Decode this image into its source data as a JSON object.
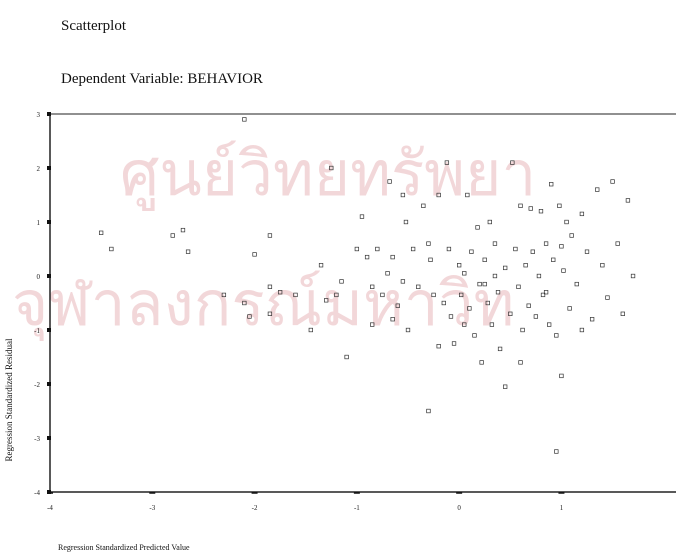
{
  "page": {
    "title": "Scatterplot",
    "subtitle": "Dependent Variable: BEHAVIOR"
  },
  "watermark": {
    "line1": "ศูนย์วิทยทรัพยา",
    "line2": "จุฬาลงกรณ์มหาวิท",
    "color": "#e8b4b8"
  },
  "chart_data": {
    "type": "scatter",
    "title": "",
    "xlabel": "Regression Standardized Predicted Value",
    "ylabel": "Regression Standardized Residual",
    "xlim": [
      -4,
      2
    ],
    "ylim": [
      -4,
      3
    ],
    "x_ticks": [
      -4,
      -3,
      -2,
      -1,
      0,
      1
    ],
    "y_ticks": [
      3,
      2,
      1,
      0,
      -1,
      -2,
      -3,
      -4
    ],
    "grid": false,
    "marker": "open-square",
    "points": [
      {
        "x": -3.5,
        "y": 0.8
      },
      {
        "x": -3.4,
        "y": 0.5
      },
      {
        "x": -2.8,
        "y": 0.75
      },
      {
        "x": -2.7,
        "y": 0.85
      },
      {
        "x": -2.65,
        "y": 0.45
      },
      {
        "x": -2.3,
        "y": -0.35
      },
      {
        "x": -2.1,
        "y": 2.9
      },
      {
        "x": -2.1,
        "y": -0.5
      },
      {
        "x": -2.0,
        "y": 0.4
      },
      {
        "x": -2.05,
        "y": -0.75
      },
      {
        "x": -1.85,
        "y": 0.75
      },
      {
        "x": -1.75,
        "y": -0.3
      },
      {
        "x": -1.6,
        "y": -0.35
      },
      {
        "x": -1.85,
        "y": -0.2
      },
      {
        "x": -1.85,
        "y": -0.7
      },
      {
        "x": -1.45,
        "y": -1.0
      },
      {
        "x": -1.35,
        "y": 0.2
      },
      {
        "x": -1.3,
        "y": -0.45
      },
      {
        "x": -1.25,
        "y": 2.0
      },
      {
        "x": -1.2,
        "y": -0.35
      },
      {
        "x": -1.15,
        "y": -0.1
      },
      {
        "x": -1.1,
        "y": -1.5
      },
      {
        "x": -1.0,
        "y": 0.5
      },
      {
        "x": -0.95,
        "y": 1.1
      },
      {
        "x": -0.9,
        "y": 0.35
      },
      {
        "x": -0.85,
        "y": -0.2
      },
      {
        "x": -0.85,
        "y": -0.9
      },
      {
        "x": -0.8,
        "y": 0.5
      },
      {
        "x": -0.75,
        "y": -0.35
      },
      {
        "x": -0.7,
        "y": 0.05
      },
      {
        "x": -0.68,
        "y": 1.75
      },
      {
        "x": -0.65,
        "y": 0.35
      },
      {
        "x": -0.6,
        "y": -0.55
      },
      {
        "x": -0.55,
        "y": 1.5
      },
      {
        "x": -0.52,
        "y": 1.0
      },
      {
        "x": -0.5,
        "y": -1.0
      },
      {
        "x": -0.45,
        "y": 0.5
      },
      {
        "x": -0.4,
        "y": -0.2
      },
      {
        "x": -0.35,
        "y": 1.3
      },
      {
        "x": -0.3,
        "y": 0.6
      },
      {
        "x": -0.28,
        "y": 0.3
      },
      {
        "x": -0.25,
        "y": -0.35
      },
      {
        "x": -0.2,
        "y": 1.5
      },
      {
        "x": -0.15,
        "y": -0.5
      },
      {
        "x": -0.12,
        "y": 2.1
      },
      {
        "x": -0.1,
        "y": 0.5
      },
      {
        "x": -0.08,
        "y": -0.75
      },
      {
        "x": -0.05,
        "y": -1.25
      },
      {
        "x": 0.0,
        "y": 0.2
      },
      {
        "x": 0.02,
        "y": -0.35
      },
      {
        "x": 0.05,
        "y": 0.05
      },
      {
        "x": 0.08,
        "y": 1.5
      },
      {
        "x": 0.1,
        "y": -0.6
      },
      {
        "x": 0.12,
        "y": 0.45
      },
      {
        "x": 0.15,
        "y": -1.1
      },
      {
        "x": 0.18,
        "y": 0.9
      },
      {
        "x": 0.2,
        "y": -0.15
      },
      {
        "x": 0.22,
        "y": -1.6
      },
      {
        "x": 0.25,
        "y": 0.3
      },
      {
        "x": 0.28,
        "y": -0.5
      },
      {
        "x": 0.3,
        "y": 1.0
      },
      {
        "x": 0.32,
        "y": -0.9
      },
      {
        "x": 0.35,
        "y": 0.6
      },
      {
        "x": 0.38,
        "y": -0.3
      },
      {
        "x": 0.4,
        "y": -1.35
      },
      {
        "x": 0.45,
        "y": 0.15
      },
      {
        "x": 0.5,
        "y": -0.7
      },
      {
        "x": 0.52,
        "y": 2.1
      },
      {
        "x": 0.55,
        "y": 0.5
      },
      {
        "x": 0.58,
        "y": -0.2
      },
      {
        "x": 0.6,
        "y": 1.3
      },
      {
        "x": 0.62,
        "y": -1.0
      },
      {
        "x": 0.65,
        "y": 0.2
      },
      {
        "x": 0.68,
        "y": -0.55
      },
      {
        "x": 0.7,
        "y": 1.25
      },
      {
        "x": 0.72,
        "y": 0.45
      },
      {
        "x": 0.75,
        "y": -0.75
      },
      {
        "x": 0.78,
        "y": 0.0
      },
      {
        "x": 0.8,
        "y": 1.2
      },
      {
        "x": 0.82,
        "y": -0.35
      },
      {
        "x": 0.85,
        "y": 0.6
      },
      {
        "x": 0.88,
        "y": -0.9
      },
      {
        "x": 0.9,
        "y": 1.7
      },
      {
        "x": 0.92,
        "y": 0.3
      },
      {
        "x": 0.95,
        "y": -1.1
      },
      {
        "x": 0.98,
        "y": 1.3
      },
      {
        "x": 1.0,
        "y": -1.85
      },
      {
        "x": 1.02,
        "y": 0.1
      },
      {
        "x": 1.05,
        "y": 1.0
      },
      {
        "x": 1.08,
        "y": -0.6
      },
      {
        "x": 1.1,
        "y": 0.75
      },
      {
        "x": 1.15,
        "y": -0.15
      },
      {
        "x": 1.2,
        "y": 1.15
      },
      {
        "x": 1.25,
        "y": 0.45
      },
      {
        "x": 1.3,
        "y": -0.8
      },
      {
        "x": 1.35,
        "y": 1.6
      },
      {
        "x": 1.4,
        "y": 0.2
      },
      {
        "x": 1.45,
        "y": -0.4
      },
      {
        "x": 1.5,
        "y": 1.75
      },
      {
        "x": 1.55,
        "y": 0.6
      },
      {
        "x": 1.6,
        "y": -0.7
      },
      {
        "x": 1.65,
        "y": 1.4
      },
      {
        "x": 1.7,
        "y": 0.0
      },
      {
        "x": -0.3,
        "y": -2.5
      },
      {
        "x": 0.95,
        "y": -3.25
      },
      {
        "x": 0.45,
        "y": -2.05
      },
      {
        "x": -0.55,
        "y": -0.1
      },
      {
        "x": 0.05,
        "y": -0.9
      },
      {
        "x": -0.2,
        "y": -1.3
      },
      {
        "x": 0.25,
        "y": -0.15
      },
      {
        "x": 0.6,
        "y": -1.6
      },
      {
        "x": 0.85,
        "y": -0.3
      },
      {
        "x": 1.2,
        "y": -1.0
      },
      {
        "x": -0.65,
        "y": -0.8
      },
      {
        "x": 0.35,
        "y": 0.0
      },
      {
        "x": 1.0,
        "y": 0.55
      }
    ]
  }
}
